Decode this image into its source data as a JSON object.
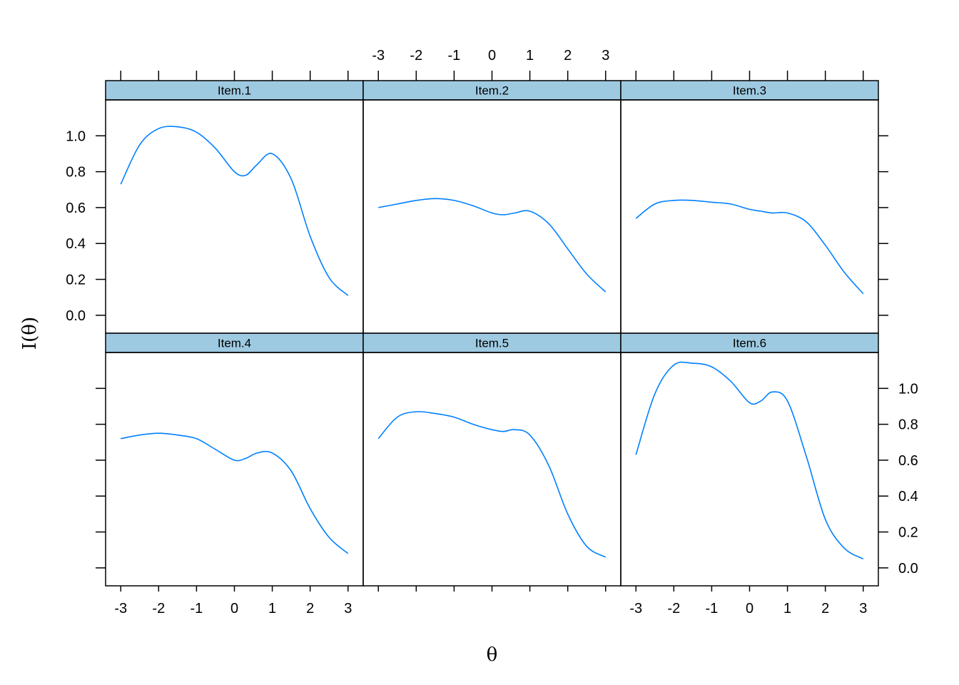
{
  "chart_data": {
    "type": "line",
    "xlabel": "θ",
    "ylabel": "I(θ)",
    "xlim": [
      -3.4,
      3.4
    ],
    "ylim": [
      -0.1,
      1.2
    ],
    "x_ticks": [
      -3,
      -2,
      -1,
      0,
      1,
      2,
      3
    ],
    "x_tick_labels": [
      "-3",
      "-2",
      "-1",
      "0",
      "1",
      "2",
      "3"
    ],
    "y_ticks": [
      0.0,
      0.2,
      0.4,
      0.6,
      0.8,
      1.0
    ],
    "y_tick_labels": [
      "0.0",
      "0.2",
      "0.4",
      "0.6",
      "0.8",
      "1.0"
    ],
    "grid": false,
    "line_color": "#0080ff",
    "strip_color": "#9ecae1",
    "x": [
      -3.0,
      -2.5,
      -2.0,
      -1.5,
      -1.0,
      -0.5,
      0.0,
      0.3,
      0.6,
      1.0,
      1.5,
      2.0,
      2.5,
      3.0
    ],
    "panels": [
      {
        "name": "Item.1",
        "values": [
          0.73,
          0.95,
          1.04,
          1.05,
          1.02,
          0.93,
          0.8,
          0.78,
          0.84,
          0.9,
          0.76,
          0.44,
          0.21,
          0.11
        ]
      },
      {
        "name": "Item.2",
        "values": [
          0.6,
          0.62,
          0.64,
          0.65,
          0.64,
          0.61,
          0.57,
          0.56,
          0.57,
          0.58,
          0.51,
          0.37,
          0.23,
          0.13
        ]
      },
      {
        "name": "Item.3",
        "values": [
          0.54,
          0.62,
          0.64,
          0.64,
          0.63,
          0.62,
          0.59,
          0.58,
          0.57,
          0.57,
          0.52,
          0.39,
          0.24,
          0.12
        ]
      },
      {
        "name": "Item.4",
        "values": [
          0.72,
          0.74,
          0.75,
          0.74,
          0.72,
          0.66,
          0.6,
          0.61,
          0.64,
          0.64,
          0.54,
          0.33,
          0.17,
          0.08
        ]
      },
      {
        "name": "Item.5",
        "values": [
          0.72,
          0.84,
          0.87,
          0.86,
          0.84,
          0.8,
          0.77,
          0.76,
          0.77,
          0.74,
          0.57,
          0.3,
          0.12,
          0.06
        ]
      },
      {
        "name": "Item.6",
        "values": [
          0.63,
          0.97,
          1.13,
          1.14,
          1.12,
          1.04,
          0.92,
          0.93,
          0.98,
          0.93,
          0.62,
          0.27,
          0.11,
          0.05
        ]
      }
    ]
  }
}
